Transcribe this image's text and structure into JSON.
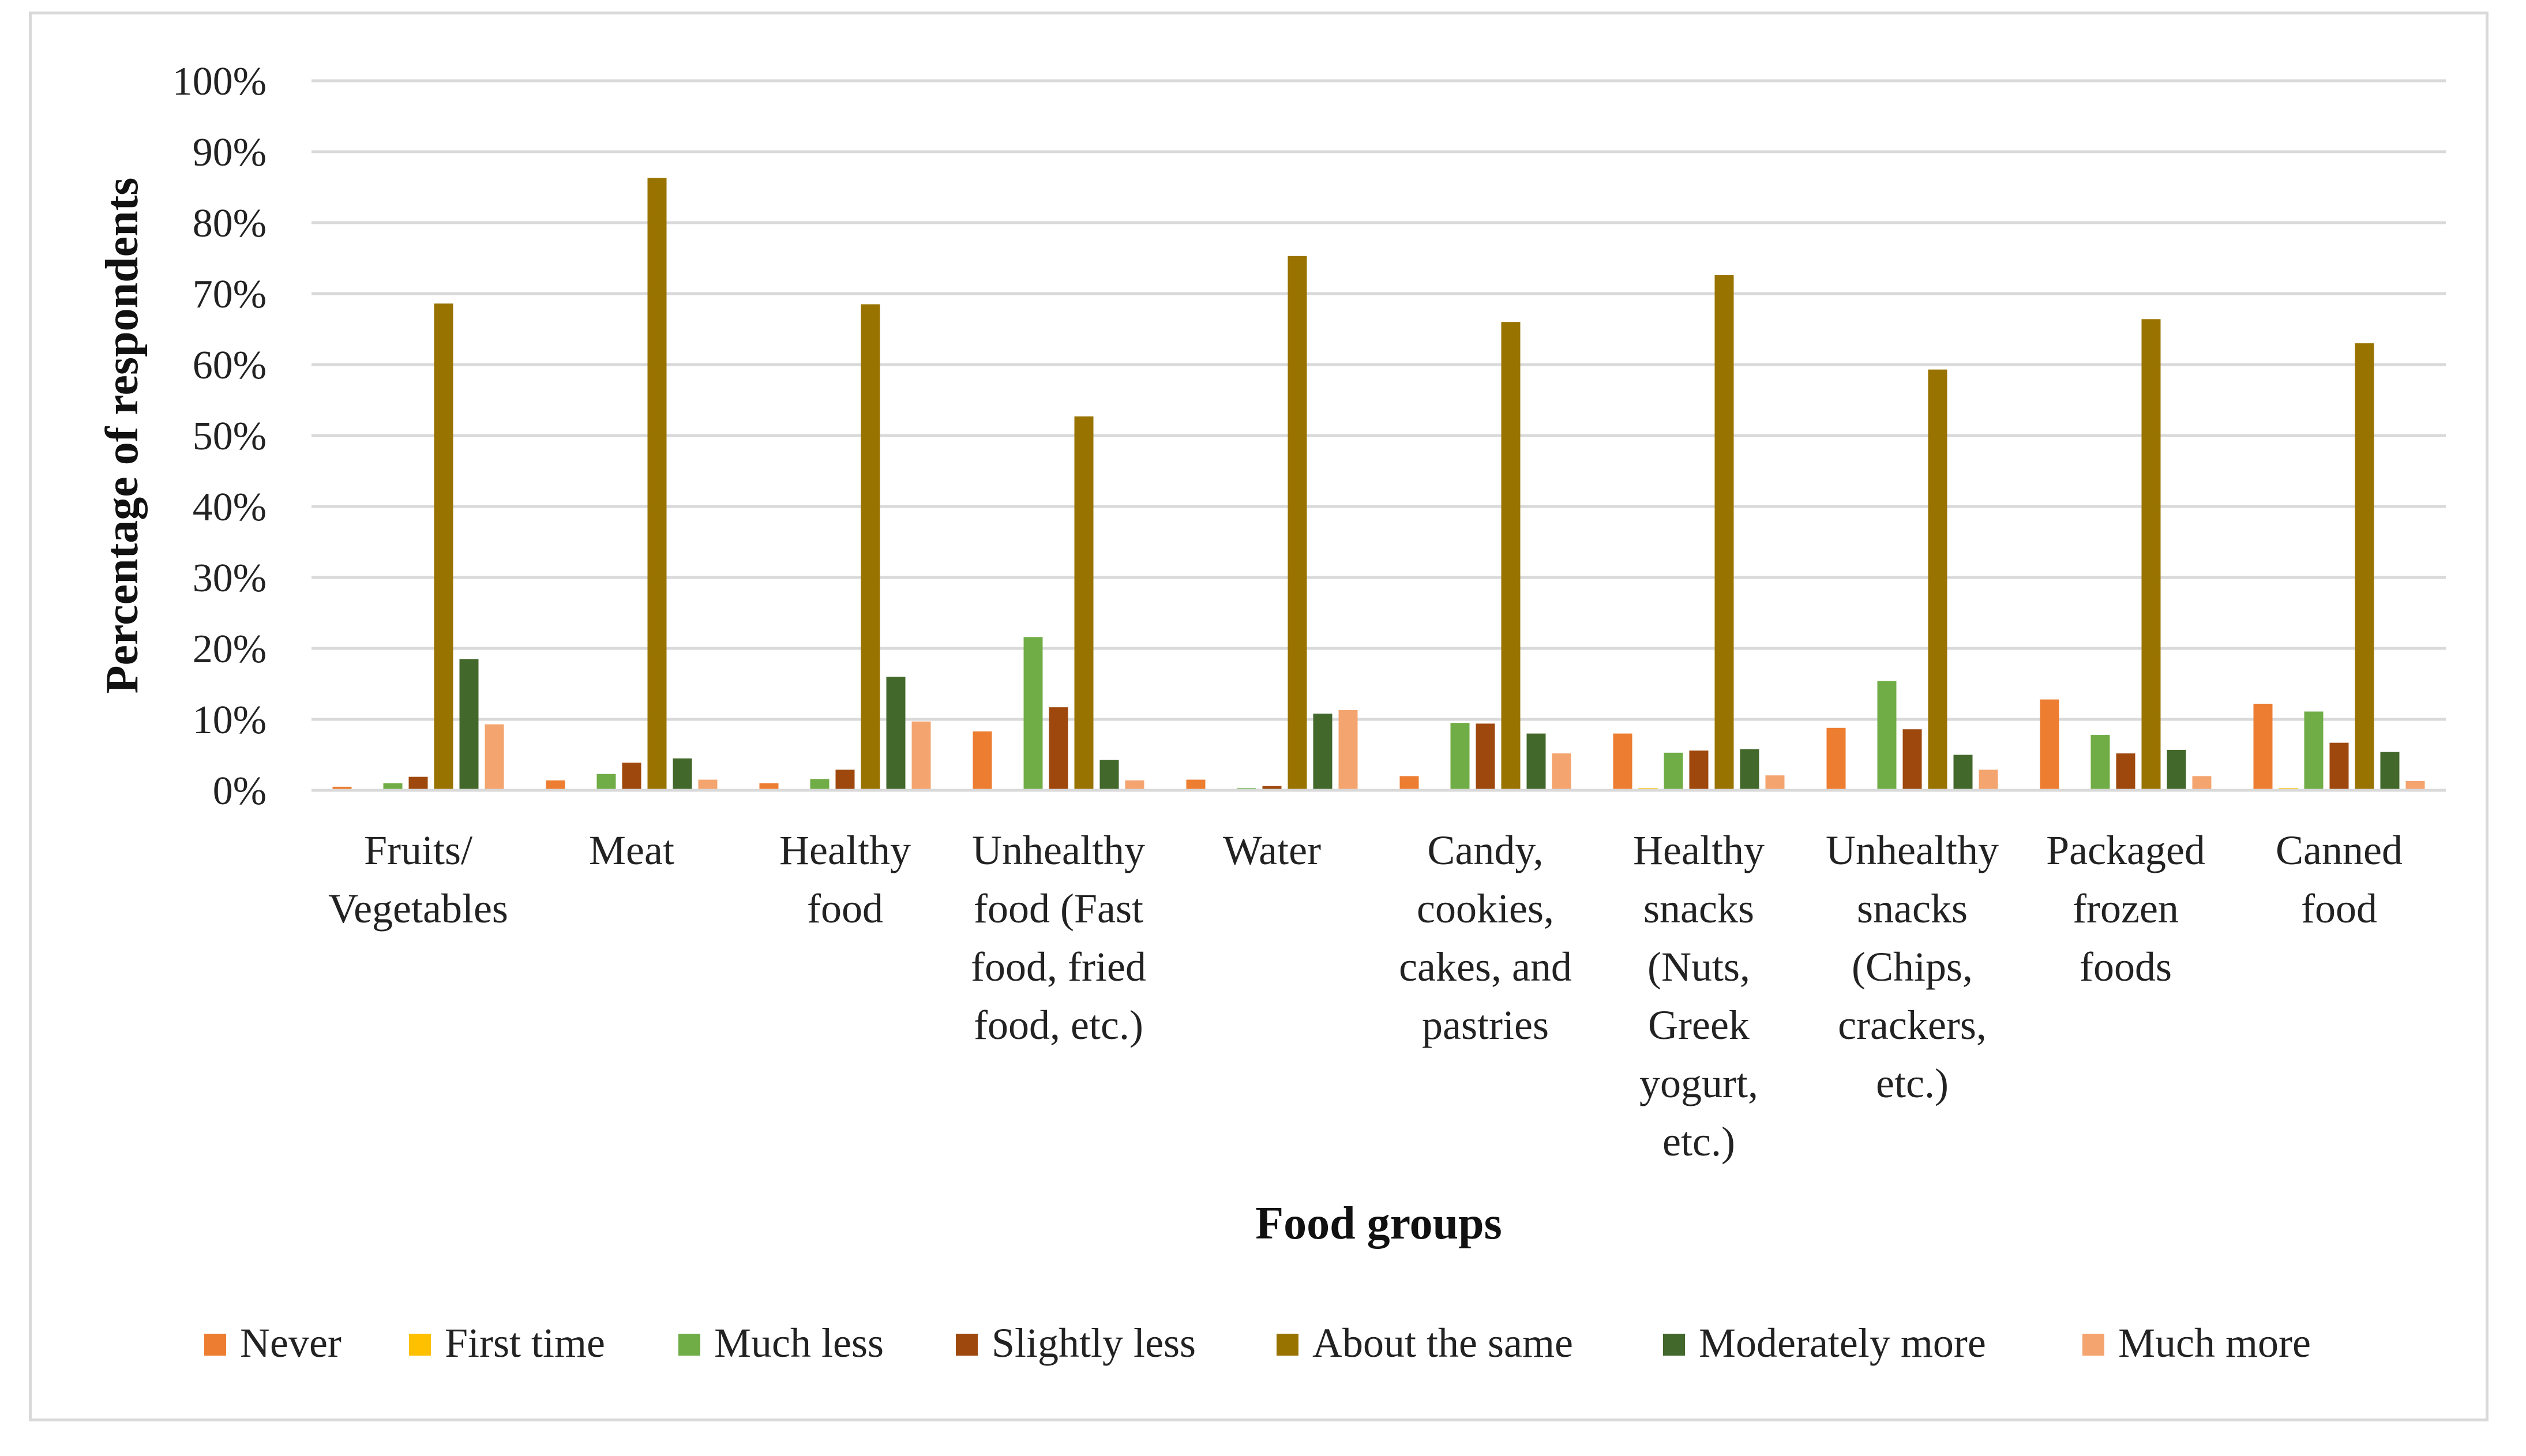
{
  "chart_data": {
    "type": "bar",
    "xlabel": "Food groups",
    "ylabel": "Percentage of respondents",
    "ylim": [
      0,
      100
    ],
    "yticks": [
      "0%",
      "10%",
      "20%",
      "30%",
      "40%",
      "50%",
      "60%",
      "70%",
      "80%",
      "90%",
      "100%"
    ],
    "grid": true,
    "legend_position": "bottom",
    "categories": [
      [
        "Fruits/",
        "Vegetables"
      ],
      [
        "Meat"
      ],
      [
        "Healthy",
        "food"
      ],
      [
        "Unhealthy",
        "food (Fast",
        "food, fried",
        "food, etc.)"
      ],
      [
        "Water"
      ],
      [
        "Candy,",
        "cookies,",
        "cakes, and",
        "pastries"
      ],
      [
        "Healthy",
        "snacks",
        "(Nuts,",
        "Greek",
        "yogurt,",
        "etc.)"
      ],
      [
        "Unhealthy",
        "snacks",
        "(Chips,",
        "crackers,",
        "etc.)"
      ],
      [
        "Packaged",
        "frozen",
        "foods"
      ],
      [
        "Canned",
        "food"
      ]
    ],
    "series": [
      {
        "name": "Never",
        "color": "#ED7D31",
        "values": [
          0.5,
          1.4,
          1.0,
          8.3,
          1.5,
          2.0,
          8.0,
          8.8,
          12.8,
          12.2
        ]
      },
      {
        "name": "First time",
        "color": "#FFC000",
        "values": [
          0,
          0,
          0,
          0,
          0,
          0,
          0.3,
          0,
          0,
          0.3
        ]
      },
      {
        "name": "Much less",
        "color": "#70AD47",
        "values": [
          1.0,
          2.3,
          1.6,
          21.6,
          0.3,
          9.5,
          5.3,
          15.4,
          7.8,
          11.1
        ]
      },
      {
        "name": "Slightly less",
        "color": "#9E480E",
        "values": [
          1.9,
          3.9,
          2.9,
          11.7,
          0.6,
          9.4,
          5.6,
          8.6,
          5.2,
          6.7
        ]
      },
      {
        "name": "About the same",
        "color": "#997300",
        "values": [
          68.6,
          86.3,
          68.5,
          52.7,
          75.3,
          66.0,
          72.6,
          59.3,
          66.4,
          63.0
        ]
      },
      {
        "name": "Moderately more",
        "color": "#43682B",
        "values": [
          18.5,
          4.5,
          16.0,
          4.3,
          10.8,
          8.0,
          5.8,
          5.0,
          5.7,
          5.4
        ]
      },
      {
        "name": "Much more",
        "color": "#F4A46F",
        "values": [
          9.3,
          1.5,
          9.7,
          1.4,
          11.3,
          5.2,
          2.1,
          2.9,
          2.0,
          1.3
        ]
      }
    ]
  }
}
